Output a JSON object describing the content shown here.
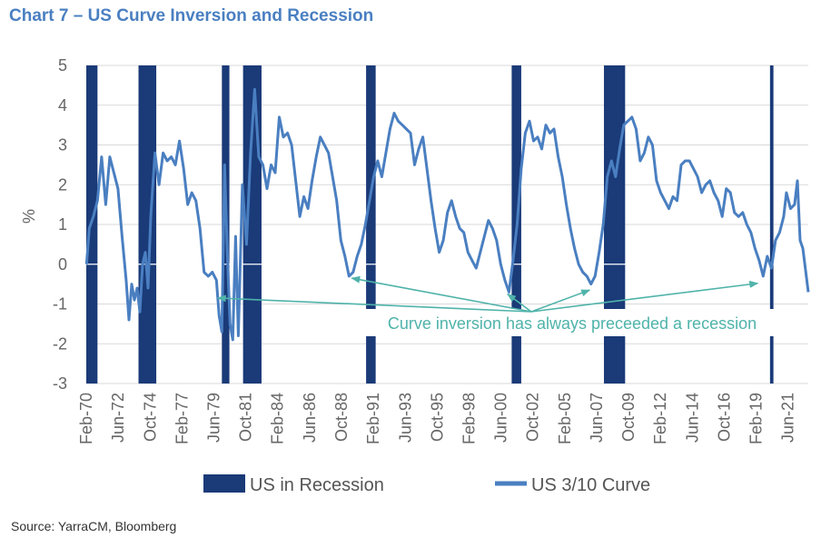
{
  "header": {
    "title": "Chart 7 – US Curve Inversion and Recession"
  },
  "source": "Source: YarraCM, Bloomberg",
  "colors": {
    "recession": "#1a3a78",
    "curve": "#4a7fc1",
    "annotation": "#4fb3aa",
    "grid": "#d9d9d9"
  },
  "chart_data": {
    "type": "line",
    "title": "Chart 7 – US Curve Inversion and Recession",
    "ylabel": "%",
    "xlabel": "",
    "ylim": [
      -3,
      5
    ],
    "yticks": [
      -3,
      -2,
      -1,
      0,
      1,
      2,
      3,
      4,
      5
    ],
    "xlim": [
      1970.08,
      2022.9
    ],
    "xticks": [
      {
        "label": "Feb-70",
        "x": 1970.08
      },
      {
        "label": "Jun-72",
        "x": 1972.42
      },
      {
        "label": "Oct-74",
        "x": 1974.75
      },
      {
        "label": "Feb-77",
        "x": 1977.08
      },
      {
        "label": "Jun-79",
        "x": 1979.42
      },
      {
        "label": "Oct-81",
        "x": 1981.75
      },
      {
        "label": "Feb-84",
        "x": 1984.08
      },
      {
        "label": "Jun-86",
        "x": 1986.42
      },
      {
        "label": "Oct-88",
        "x": 1988.75
      },
      {
        "label": "Feb-91",
        "x": 1991.08
      },
      {
        "label": "Jun-93",
        "x": 1993.42
      },
      {
        "label": "Oct-95",
        "x": 1995.75
      },
      {
        "label": "Feb-98",
        "x": 1998.08
      },
      {
        "label": "Jun-00",
        "x": 2000.42
      },
      {
        "label": "Oct-02",
        "x": 2002.75
      },
      {
        "label": "Feb-05",
        "x": 2005.08
      },
      {
        "label": "Jun-07",
        "x": 2007.42
      },
      {
        "label": "Oct-09",
        "x": 2009.75
      },
      {
        "label": "Feb-12",
        "x": 2012.08
      },
      {
        "label": "Jun-14",
        "x": 2014.42
      },
      {
        "label": "Oct-16",
        "x": 2016.75
      },
      {
        "label": "Feb-19",
        "x": 2019.08
      },
      {
        "label": "Jun-21",
        "x": 2021.42
      }
    ],
    "grid": true,
    "legend_position": "bottom",
    "recessions": [
      [
        1970.08,
        1970.9
      ],
      [
        1973.9,
        1975.2
      ],
      [
        1980.0,
        1980.55
      ],
      [
        1981.55,
        1982.9
      ],
      [
        1990.55,
        1991.25
      ],
      [
        2001.2,
        2001.9
      ],
      [
        2007.95,
        2009.5
      ],
      [
        2020.1,
        2020.35
      ]
    ],
    "series": [
      {
        "name": "US 3/10 Curve",
        "points": [
          [
            1970.1,
            0.0
          ],
          [
            1970.3,
            0.9
          ],
          [
            1970.6,
            1.2
          ],
          [
            1970.9,
            1.6
          ],
          [
            1971.2,
            2.7
          ],
          [
            1971.5,
            1.5
          ],
          [
            1971.8,
            2.7
          ],
          [
            1972.1,
            2.3
          ],
          [
            1972.4,
            1.9
          ],
          [
            1972.7,
            0.7
          ],
          [
            1973.0,
            -0.4
          ],
          [
            1973.2,
            -1.4
          ],
          [
            1973.4,
            -0.5
          ],
          [
            1973.6,
            -0.9
          ],
          [
            1973.8,
            -0.6
          ],
          [
            1974.0,
            -1.2
          ],
          [
            1974.2,
            0.0
          ],
          [
            1974.4,
            0.3
          ],
          [
            1974.6,
            -0.6
          ],
          [
            1974.8,
            1.2
          ],
          [
            1975.1,
            2.8
          ],
          [
            1975.4,
            2.0
          ],
          [
            1975.7,
            2.8
          ],
          [
            1976.0,
            2.6
          ],
          [
            1976.3,
            2.7
          ],
          [
            1976.6,
            2.5
          ],
          [
            1976.9,
            3.1
          ],
          [
            1977.2,
            2.4
          ],
          [
            1977.5,
            1.5
          ],
          [
            1977.8,
            1.8
          ],
          [
            1978.1,
            1.6
          ],
          [
            1978.4,
            0.9
          ],
          [
            1978.7,
            -0.2
          ],
          [
            1979.0,
            -0.3
          ],
          [
            1979.3,
            -0.2
          ],
          [
            1979.6,
            -0.4
          ],
          [
            1979.8,
            -1.3
          ],
          [
            1980.0,
            -1.7
          ],
          [
            1980.2,
            2.5
          ],
          [
            1980.4,
            0.3
          ],
          [
            1980.6,
            -1.5
          ],
          [
            1980.8,
            -1.9
          ],
          [
            1981.0,
            0.7
          ],
          [
            1981.2,
            -1.8
          ],
          [
            1981.5,
            2.0
          ],
          [
            1981.8,
            0.5
          ],
          [
            1982.1,
            2.8
          ],
          [
            1982.4,
            4.4
          ],
          [
            1982.7,
            2.7
          ],
          [
            1983.0,
            2.5
          ],
          [
            1983.3,
            1.9
          ],
          [
            1983.6,
            2.5
          ],
          [
            1983.9,
            2.3
          ],
          [
            1984.2,
            3.7
          ],
          [
            1984.5,
            3.2
          ],
          [
            1984.8,
            3.3
          ],
          [
            1985.1,
            3.0
          ],
          [
            1985.4,
            2.1
          ],
          [
            1985.7,
            1.2
          ],
          [
            1986.0,
            1.7
          ],
          [
            1986.3,
            1.4
          ],
          [
            1986.6,
            2.1
          ],
          [
            1986.9,
            2.7
          ],
          [
            1987.2,
            3.2
          ],
          [
            1987.5,
            3.0
          ],
          [
            1987.8,
            2.8
          ],
          [
            1988.1,
            2.2
          ],
          [
            1988.4,
            1.6
          ],
          [
            1988.7,
            0.6
          ],
          [
            1989.0,
            0.2
          ],
          [
            1989.3,
            -0.3
          ],
          [
            1989.6,
            -0.2
          ],
          [
            1989.9,
            0.2
          ],
          [
            1990.2,
            0.5
          ],
          [
            1990.5,
            1.0
          ],
          [
            1990.8,
            1.6
          ],
          [
            1991.1,
            2.2
          ],
          [
            1991.4,
            2.6
          ],
          [
            1991.7,
            2.2
          ],
          [
            1992.0,
            2.8
          ],
          [
            1992.3,
            3.4
          ],
          [
            1992.6,
            3.8
          ],
          [
            1992.9,
            3.6
          ],
          [
            1993.2,
            3.5
          ],
          [
            1993.5,
            3.4
          ],
          [
            1993.8,
            3.3
          ],
          [
            1994.1,
            2.5
          ],
          [
            1994.4,
            2.9
          ],
          [
            1994.7,
            3.2
          ],
          [
            1995.0,
            2.4
          ],
          [
            1995.3,
            1.6
          ],
          [
            1995.6,
            0.9
          ],
          [
            1995.9,
            0.3
          ],
          [
            1996.2,
            0.6
          ],
          [
            1996.5,
            1.3
          ],
          [
            1996.8,
            1.6
          ],
          [
            1997.1,
            1.2
          ],
          [
            1997.4,
            0.9
          ],
          [
            1997.7,
            0.8
          ],
          [
            1998.0,
            0.3
          ],
          [
            1998.3,
            0.1
          ],
          [
            1998.6,
            -0.1
          ],
          [
            1998.9,
            0.3
          ],
          [
            1999.2,
            0.7
          ],
          [
            1999.5,
            1.1
          ],
          [
            1999.8,
            0.9
          ],
          [
            2000.1,
            0.6
          ],
          [
            2000.4,
            0.0
          ],
          [
            2000.7,
            -0.4
          ],
          [
            2001.0,
            -0.7
          ],
          [
            2001.3,
            0.1
          ],
          [
            2001.6,
            1.0
          ],
          [
            2001.9,
            2.4
          ],
          [
            2002.2,
            3.3
          ],
          [
            2002.5,
            3.6
          ],
          [
            2002.8,
            3.1
          ],
          [
            2003.1,
            3.2
          ],
          [
            2003.4,
            2.9
          ],
          [
            2003.7,
            3.5
          ],
          [
            2004.0,
            3.3
          ],
          [
            2004.3,
            3.4
          ],
          [
            2004.6,
            2.7
          ],
          [
            2004.9,
            2.2
          ],
          [
            2005.2,
            1.5
          ],
          [
            2005.5,
            0.9
          ],
          [
            2005.8,
            0.4
          ],
          [
            2006.1,
            0.0
          ],
          [
            2006.4,
            -0.2
          ],
          [
            2006.7,
            -0.3
          ],
          [
            2007.0,
            -0.5
          ],
          [
            2007.3,
            -0.3
          ],
          [
            2007.6,
            0.3
          ],
          [
            2007.9,
            1.0
          ],
          [
            2008.2,
            2.2
          ],
          [
            2008.5,
            2.6
          ],
          [
            2008.8,
            2.2
          ],
          [
            2009.1,
            2.9
          ],
          [
            2009.4,
            3.5
          ],
          [
            2009.7,
            3.6
          ],
          [
            2010.0,
            3.7
          ],
          [
            2010.3,
            3.4
          ],
          [
            2010.6,
            2.6
          ],
          [
            2010.9,
            2.8
          ],
          [
            2011.2,
            3.2
          ],
          [
            2011.5,
            3.0
          ],
          [
            2011.8,
            2.1
          ],
          [
            2012.1,
            1.8
          ],
          [
            2012.4,
            1.6
          ],
          [
            2012.7,
            1.4
          ],
          [
            2013.0,
            1.7
          ],
          [
            2013.3,
            1.6
          ],
          [
            2013.6,
            2.5
          ],
          [
            2013.9,
            2.6
          ],
          [
            2014.2,
            2.6
          ],
          [
            2014.5,
            2.4
          ],
          [
            2014.8,
            2.2
          ],
          [
            2015.1,
            1.8
          ],
          [
            2015.4,
            2.0
          ],
          [
            2015.7,
            2.1
          ],
          [
            2016.0,
            1.8
          ],
          [
            2016.3,
            1.6
          ],
          [
            2016.6,
            1.2
          ],
          [
            2016.9,
            1.9
          ],
          [
            2017.2,
            1.8
          ],
          [
            2017.5,
            1.3
          ],
          [
            2017.8,
            1.2
          ],
          [
            2018.1,
            1.3
          ],
          [
            2018.4,
            1.0
          ],
          [
            2018.7,
            0.8
          ],
          [
            2019.0,
            0.4
          ],
          [
            2019.3,
            0.1
          ],
          [
            2019.6,
            -0.3
          ],
          [
            2019.9,
            0.2
          ],
          [
            2020.2,
            -0.1
          ],
          [
            2020.5,
            0.6
          ],
          [
            2020.8,
            0.8
          ],
          [
            2021.1,
            1.2
          ],
          [
            2021.3,
            1.8
          ],
          [
            2021.6,
            1.4
          ],
          [
            2021.9,
            1.5
          ],
          [
            2022.1,
            2.1
          ],
          [
            2022.3,
            0.6
          ],
          [
            2022.5,
            0.4
          ],
          [
            2022.9,
            -0.7
          ]
        ]
      }
    ],
    "legend": [
      {
        "label": "US in Recession",
        "kind": "bar"
      },
      {
        "label": "US 3/10 Curve",
        "kind": "line"
      }
    ],
    "annotation": {
      "text": "Curve inversion has always preceeded a recession",
      "arrow_targets": [
        [
          1979.7,
          -0.85
        ],
        [
          1989.5,
          -0.35
        ],
        [
          2000.9,
          -0.75
        ],
        [
          2006.9,
          -0.65
        ],
        [
          2019.2,
          -0.48
        ]
      ]
    }
  }
}
